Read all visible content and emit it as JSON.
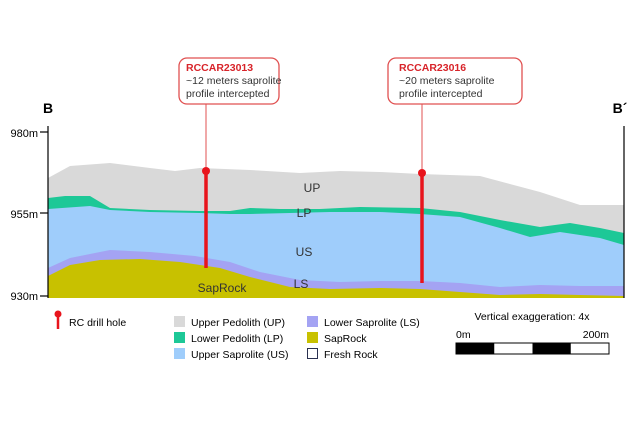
{
  "section": {
    "start_label": "B",
    "end_label": "B´",
    "elevation_ticks": [
      "980m",
      "955m",
      "930m"
    ]
  },
  "layers": {
    "up": "UP",
    "lp": "LP",
    "us": "US",
    "ls": "LS",
    "saprock": "SapRock"
  },
  "callouts": [
    {
      "hole_id": "RCCAR23013",
      "line1": "~12 meters saprolite",
      "line2": "profile intercepted"
    },
    {
      "hole_id": "RCCAR23016",
      "line1": "~20 meters saprolite",
      "line2": "profile intercepted"
    }
  ],
  "legend": {
    "drill_hole": "RC drill hole",
    "items": [
      {
        "label": "Upper Pedolith (UP)",
        "color": "#d9d9d9"
      },
      {
        "label": "Lower Pedolith (LP)",
        "color": "#1dc897"
      },
      {
        "label": "Upper Saprolite (US)",
        "color": "#9fcdfb"
      },
      {
        "label": "Lower Saprolite (LS)",
        "color": "#a4a3f3"
      },
      {
        "label": "SapRock",
        "color": "#c8c100"
      },
      {
        "label": "Fresh Rock",
        "color": "#ffffff"
      }
    ]
  },
  "scale": {
    "title": "Vertical exaggeration: 4x",
    "start": "0m",
    "end": "200m"
  },
  "colors": {
    "drill": "#e8141c",
    "callout_border": "#e05050",
    "callout_title": "#d8242a"
  }
}
